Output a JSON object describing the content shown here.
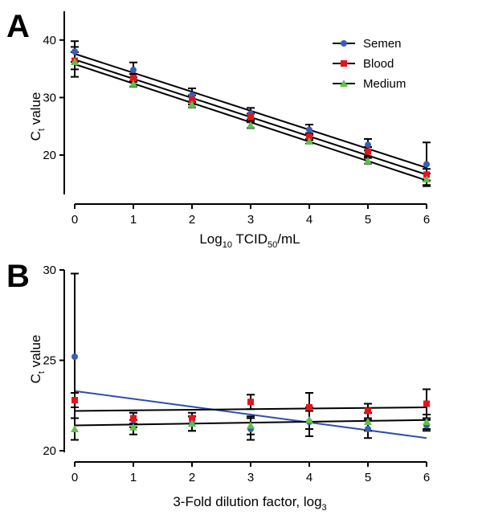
{
  "colors": {
    "Semen": "#3a5db5",
    "Blood": "#e8131a",
    "Medium": "#5fc14a"
  },
  "chart_data": [
    {
      "panel": "A",
      "type": "scatter",
      "xlabel_main": "Log",
      "xlabel_sub1": "10",
      "xlabel_mid": " TCID",
      "xlabel_sub2": "50",
      "xlabel_tail": "/mL",
      "ylabel_main": "C",
      "ylabel_sub": "t",
      "ylabel_tail": " value",
      "xlim": [
        0,
        6
      ],
      "ylim": [
        14,
        45
      ],
      "xticks": [
        0,
        1,
        2,
        3,
        4,
        5,
        6
      ],
      "yticks": [
        20,
        30,
        40
      ],
      "legend": "top-right",
      "series": [
        {
          "name": "Semen",
          "marker": "circle",
          "points": [
            [
              0,
              38.0
            ],
            [
              1,
              34.8
            ],
            [
              2,
              30.4
            ],
            [
              3,
              27.2
            ],
            [
              4,
              24.4
            ],
            [
              5,
              21.8
            ],
            [
              6,
              18.4
            ]
          ],
          "err": [
            1.8,
            1.3,
            1.2,
            1.0,
            0.9,
            1.0,
            3.8
          ],
          "fit": [
            37.6,
            17.8
          ]
        },
        {
          "name": "Blood",
          "marker": "square",
          "points": [
            [
              0,
              36.4
            ],
            [
              1,
              33.4
            ],
            [
              2,
              29.6
            ],
            [
              3,
              26.6
            ],
            [
              4,
              23.2
            ],
            [
              5,
              20.6
            ],
            [
              6,
              16.6
            ]
          ],
          "err": [
            1.5,
            0.7,
            0.8,
            0.6,
            0.6,
            0.8,
            1.0
          ],
          "fit": [
            36.6,
            16.6
          ]
        },
        {
          "name": "Medium",
          "marker": "triangle",
          "points": [
            [
              0,
              36.2
            ],
            [
              1,
              32.4
            ],
            [
              2,
              28.8
            ],
            [
              3,
              25.2
            ],
            [
              4,
              22.4
            ],
            [
              5,
              19.0
            ],
            [
              6,
              15.8
            ]
          ],
          "err": [
            2.6,
            0.5,
            0.5,
            0.5,
            0.4,
            0.5,
            1.0
          ],
          "fit": [
            35.8,
            15.6
          ]
        }
      ]
    },
    {
      "panel": "B",
      "type": "scatter",
      "xlabel_main": "3-Fold dilution factor, log",
      "xlabel_sub1": "3",
      "ylabel_main": "C",
      "ylabel_sub": "t",
      "ylabel_tail": " value",
      "xlim": [
        0,
        6
      ],
      "ylim": [
        20,
        30
      ],
      "xticks": [
        0,
        1,
        2,
        3,
        4,
        5,
        6
      ],
      "yticks": [
        20,
        25,
        30
      ],
      "series": [
        {
          "name": "Semen",
          "marker": "circle",
          "points": [
            [
              0,
              25.2
            ],
            [
              1,
              21.7
            ],
            [
              2,
              21.5
            ],
            [
              3,
              21.2
            ],
            [
              4,
              21.6
            ],
            [
              5,
              21.2
            ],
            [
              6,
              21.4
            ]
          ],
          "err": [
            4.6,
            0.4,
            0.4,
            0.6,
            0.8,
            0.5,
            0.3
          ],
          "fit": [
            23.3,
            20.7
          ],
          "fit_color": "#2f4fa8"
        },
        {
          "name": "Blood",
          "marker": "square",
          "points": [
            [
              0,
              22.8
            ],
            [
              1,
              21.8
            ],
            [
              2,
              21.8
            ],
            [
              3,
              22.7
            ],
            [
              4,
              22.4
            ],
            [
              5,
              22.2
            ],
            [
              6,
              22.6
            ]
          ],
          "err": [
            0.4,
            0.3,
            0.3,
            0.4,
            0.8,
            0.4,
            0.8
          ],
          "fit": [
            22.2,
            22.4
          ],
          "fit_color": "#000000"
        },
        {
          "name": "Medium",
          "marker": "triangle",
          "points": [
            [
              0,
              21.2
            ],
            [
              1,
              21.3
            ],
            [
              2,
              21.5
            ],
            [
              3,
              21.4
            ],
            [
              4,
              21.7
            ],
            [
              5,
              21.6
            ],
            [
              6,
              21.6
            ]
          ],
          "err": [
            0.6,
            0.4,
            0.4,
            0.5,
            0.5,
            0.5,
            0.4
          ],
          "fit": [
            21.4,
            21.7
          ],
          "fit_color": "#000000"
        }
      ]
    }
  ]
}
